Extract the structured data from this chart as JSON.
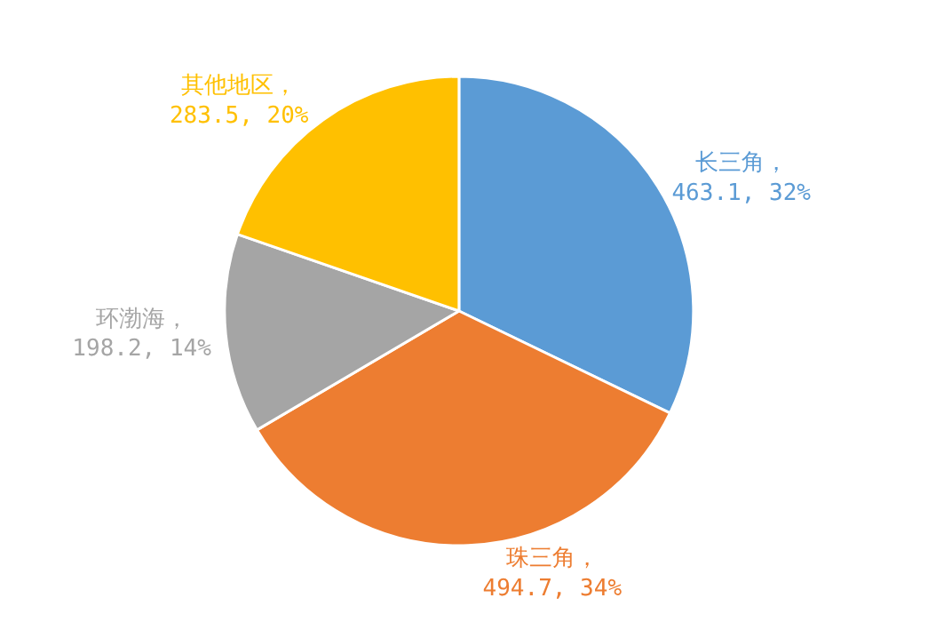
{
  "chart_data": {
    "type": "pie",
    "categories": [
      "长三角",
      "珠三角",
      "环渤海",
      "其他地区"
    ],
    "values": [
      463.1,
      494.7,
      198.2,
      283.5
    ],
    "value_labels": [
      "，463.1, 32%",
      "，494.7, 34%",
      "，198.2, 14%",
      "，283.5, 20%"
    ],
    "colors": [
      "#5b9bd5",
      "#ed7d31",
      "#a5a5a5",
      "#ffc000"
    ],
    "legend": false
  }
}
